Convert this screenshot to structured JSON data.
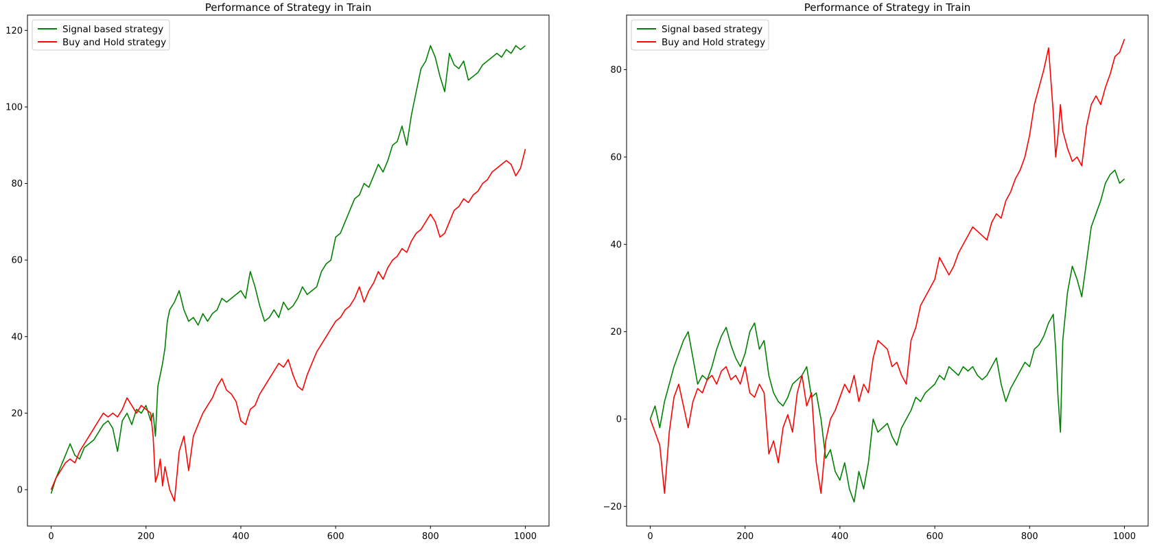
{
  "chart_data": [
    {
      "type": "line",
      "title": "Performance of Strategy in Train",
      "xlabel": "",
      "ylabel": "",
      "xlim": [
        -50,
        1050
      ],
      "ylim": [
        -9.5,
        124
      ],
      "xticks": [
        0,
        200,
        400,
        600,
        800,
        1000
      ],
      "yticks": [
        0,
        20,
        40,
        60,
        80,
        100,
        120
      ],
      "grid": false,
      "legend": "top-left",
      "series": [
        {
          "name": "Signal based strategy",
          "color": "#008000",
          "x": [
            0,
            10,
            20,
            30,
            40,
            50,
            60,
            70,
            80,
            90,
            100,
            110,
            120,
            130,
            140,
            150,
            160,
            170,
            180,
            190,
            200,
            210,
            215,
            220,
            225,
            230,
            235,
            240,
            245,
            250,
            260,
            270,
            280,
            290,
            300,
            310,
            320,
            330,
            340,
            350,
            360,
            370,
            380,
            390,
            400,
            410,
            420,
            430,
            440,
            450,
            460,
            470,
            480,
            490,
            500,
            510,
            520,
            530,
            540,
            550,
            560,
            570,
            580,
            590,
            600,
            610,
            620,
            630,
            640,
            650,
            660,
            670,
            680,
            690,
            700,
            710,
            720,
            730,
            740,
            750,
            760,
            770,
            780,
            790,
            800,
            810,
            820,
            830,
            840,
            850,
            860,
            870,
            880,
            890,
            900,
            910,
            920,
            930,
            940,
            950,
            960,
            970,
            980,
            990,
            1000
          ],
          "y": [
            -1,
            3,
            6,
            9,
            12,
            9,
            8,
            11,
            12,
            13,
            15,
            17,
            18,
            16,
            10,
            18,
            20,
            17,
            21,
            20,
            22,
            18,
            20,
            14,
            27,
            30,
            33,
            37,
            44,
            47,
            49,
            52,
            47,
            44,
            45,
            43,
            46,
            44,
            46,
            47,
            50,
            49,
            50,
            51,
            52,
            50,
            57,
            53,
            48,
            44,
            45,
            47,
            45,
            49,
            47,
            48,
            50,
            53,
            51,
            52,
            53,
            57,
            59,
            60,
            66,
            67,
            70,
            73,
            76,
            77,
            80,
            79,
            82,
            85,
            83,
            86,
            90,
            91,
            95,
            90,
            98,
            104,
            110,
            112,
            116,
            113,
            108,
            104,
            114,
            111,
            110,
            112,
            107,
            108,
            109,
            111,
            112,
            113,
            114,
            113,
            115,
            114,
            116,
            115,
            116
          ]
        },
        {
          "name": "Buy and Hold strategy",
          "color": "#ff0000",
          "x": [
            0,
            10,
            20,
            30,
            40,
            50,
            60,
            70,
            80,
            90,
            100,
            110,
            120,
            130,
            140,
            150,
            160,
            170,
            180,
            190,
            200,
            210,
            215,
            220,
            225,
            230,
            235,
            240,
            245,
            250,
            260,
            270,
            280,
            290,
            300,
            310,
            320,
            330,
            340,
            350,
            360,
            370,
            380,
            390,
            400,
            410,
            420,
            430,
            440,
            450,
            460,
            470,
            480,
            490,
            500,
            510,
            520,
            530,
            540,
            550,
            560,
            570,
            580,
            590,
            600,
            610,
            620,
            630,
            640,
            650,
            660,
            670,
            680,
            690,
            700,
            710,
            720,
            730,
            740,
            750,
            760,
            770,
            780,
            790,
            800,
            810,
            820,
            830,
            840,
            850,
            860,
            870,
            880,
            890,
            900,
            910,
            920,
            930,
            940,
            950,
            960,
            970,
            980,
            990,
            1000
          ],
          "y": [
            0,
            3,
            5,
            7,
            8,
            7,
            10,
            12,
            14,
            16,
            18,
            20,
            19,
            20,
            19,
            21,
            24,
            22,
            20,
            22,
            21,
            20,
            14,
            2,
            4,
            8,
            1,
            6,
            3,
            0,
            -3,
            10,
            14,
            5,
            14,
            17,
            20,
            22,
            24,
            27,
            29,
            26,
            25,
            23,
            18,
            17,
            21,
            22,
            25,
            27,
            29,
            31,
            33,
            32,
            34,
            30,
            27,
            26,
            30,
            33,
            36,
            38,
            40,
            42,
            44,
            45,
            47,
            48,
            50,
            53,
            49,
            52,
            54,
            57,
            55,
            58,
            60,
            61,
            63,
            62,
            65,
            67,
            68,
            70,
            72,
            70,
            66,
            67,
            70,
            73,
            74,
            76,
            75,
            77,
            78,
            80,
            81,
            83,
            84,
            85,
            86,
            85,
            82,
            84,
            89
          ]
        }
      ]
    },
    {
      "type": "line",
      "title": "Performance of Strategy in Train",
      "xlabel": "",
      "ylabel": "",
      "xlim": [
        -50,
        1050
      ],
      "ylim": [
        -24.5,
        92.5
      ],
      "xticks": [
        0,
        200,
        400,
        600,
        800,
        1000
      ],
      "yticks": [
        -20,
        0,
        20,
        40,
        60,
        80
      ],
      "ytick_labels": [
        "−20",
        "0",
        "20",
        "40",
        "60",
        "80"
      ],
      "grid": false,
      "legend": "top-left",
      "series": [
        {
          "name": "Signal based strategy",
          "color": "#008000",
          "x": [
            0,
            10,
            20,
            30,
            40,
            50,
            60,
            70,
            80,
            90,
            100,
            110,
            120,
            130,
            140,
            150,
            160,
            170,
            180,
            190,
            200,
            210,
            220,
            230,
            240,
            250,
            260,
            270,
            280,
            290,
            300,
            310,
            320,
            330,
            340,
            350,
            360,
            370,
            380,
            390,
            400,
            410,
            420,
            430,
            440,
            450,
            460,
            470,
            480,
            490,
            500,
            510,
            520,
            530,
            540,
            550,
            560,
            570,
            580,
            590,
            600,
            610,
            620,
            630,
            640,
            650,
            660,
            670,
            680,
            690,
            700,
            710,
            720,
            730,
            740,
            750,
            760,
            770,
            780,
            790,
            800,
            810,
            820,
            830,
            840,
            850,
            855,
            860,
            865,
            870,
            880,
            890,
            900,
            910,
            920,
            930,
            940,
            950,
            960,
            970,
            980,
            990,
            1000
          ],
          "y": [
            0,
            3,
            -2,
            4,
            8,
            12,
            15,
            18,
            20,
            14,
            8,
            10,
            9,
            12,
            16,
            19,
            21,
            17,
            14,
            12,
            15,
            20,
            22,
            16,
            18,
            10,
            6,
            4,
            3,
            5,
            8,
            9,
            10,
            12,
            5,
            6,
            0,
            -9,
            -7,
            -12,
            -14,
            -10,
            -16,
            -19,
            -12,
            -16,
            -10,
            0,
            -3,
            -2,
            -1,
            -4,
            -6,
            -2,
            0,
            2,
            5,
            4,
            6,
            7,
            8,
            10,
            9,
            12,
            11,
            10,
            12,
            11,
            12,
            10,
            9,
            10,
            12,
            14,
            8,
            4,
            7,
            9,
            11,
            13,
            12,
            16,
            17,
            19,
            22,
            24,
            16,
            5,
            -3,
            18,
            29,
            35,
            32,
            28,
            36,
            44,
            47,
            50,
            54,
            56,
            57,
            54,
            55
          ]
        },
        {
          "name": "Buy and Hold strategy",
          "color": "#ff0000",
          "x": [
            0,
            10,
            20,
            30,
            40,
            50,
            60,
            70,
            80,
            90,
            100,
            110,
            120,
            130,
            140,
            150,
            160,
            170,
            180,
            190,
            200,
            210,
            220,
            230,
            240,
            250,
            260,
            270,
            280,
            290,
            300,
            310,
            320,
            330,
            340,
            350,
            360,
            370,
            380,
            390,
            400,
            410,
            420,
            430,
            440,
            450,
            460,
            470,
            480,
            490,
            500,
            510,
            520,
            530,
            540,
            550,
            560,
            570,
            580,
            590,
            600,
            610,
            620,
            630,
            640,
            650,
            660,
            670,
            680,
            690,
            700,
            710,
            720,
            730,
            740,
            750,
            760,
            770,
            780,
            790,
            800,
            810,
            820,
            830,
            840,
            850,
            855,
            860,
            865,
            870,
            880,
            890,
            900,
            910,
            920,
            930,
            940,
            950,
            960,
            970,
            980,
            990,
            1000
          ],
          "y": [
            0,
            -3,
            -6,
            -17,
            -3,
            5,
            8,
            3,
            -2,
            4,
            7,
            6,
            9,
            10,
            8,
            11,
            12,
            9,
            10,
            8,
            12,
            6,
            5,
            8,
            6,
            -8,
            -5,
            -10,
            -2,
            1,
            -3,
            6,
            10,
            3,
            6,
            -10,
            -17,
            -5,
            0,
            2,
            5,
            8,
            6,
            10,
            4,
            8,
            6,
            14,
            18,
            17,
            16,
            12,
            13,
            10,
            8,
            18,
            21,
            26,
            28,
            30,
            32,
            37,
            35,
            33,
            35,
            38,
            40,
            42,
            44,
            43,
            42,
            41,
            45,
            47,
            46,
            50,
            52,
            55,
            57,
            60,
            65,
            72,
            76,
            80,
            85,
            70,
            60,
            65,
            72,
            66,
            62,
            59,
            60,
            58,
            67,
            72,
            74,
            72,
            76,
            79,
            83,
            84,
            87
          ]
        }
      ]
    }
  ]
}
